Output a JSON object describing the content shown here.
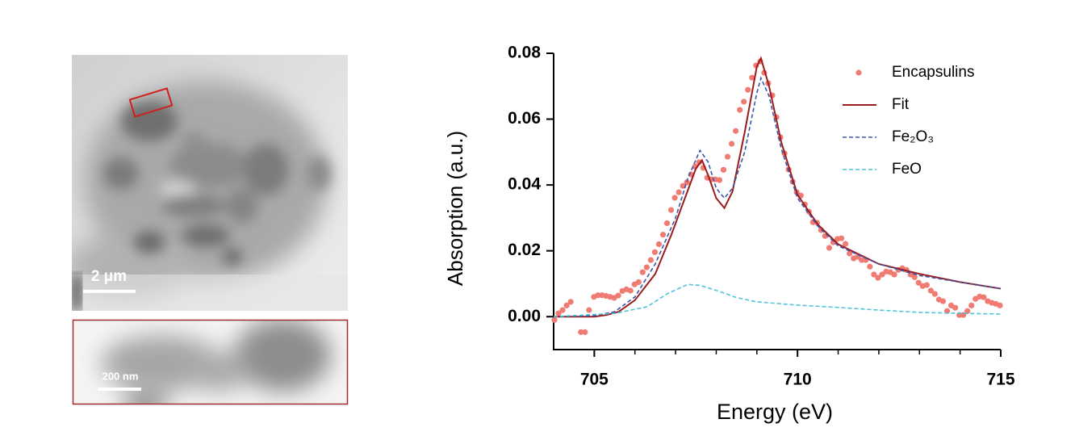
{
  "image_labels": {
    "main_scale": "2 μm",
    "inset_scale": "200 nm"
  },
  "chart_data": {
    "type": "line",
    "xlabel": "Energy (eV)",
    "ylabel": "Absorption (a.u.)",
    "xlim": [
      704,
      715
    ],
    "xticks": [
      705,
      710,
      715
    ],
    "xminorticks": [
      706,
      707,
      708,
      709,
      711,
      712,
      713,
      714
    ],
    "ylim": [
      -0.01,
      0.08
    ],
    "yticks": [
      {
        "value": 0,
        "label": "0.00"
      },
      0.02,
      0.04,
      0.06,
      0.08
    ],
    "legend": "upper right",
    "series": [
      {
        "name": "Encapsulins",
        "color": "#f07b72",
        "style": "markers",
        "x": [
          704.02,
          704.12,
          704.22,
          704.32,
          704.42,
          704.67,
          704.77,
          704.87,
          704.99,
          705.09,
          705.19,
          705.29,
          705.39,
          705.49,
          705.59,
          705.69,
          705.79,
          705.89,
          705.99,
          706.09,
          706.19,
          706.29,
          706.39,
          706.49,
          706.59,
          706.69,
          706.79,
          706.89,
          706.98,
          707.08,
          707.18,
          707.28,
          707.38,
          707.48,
          707.58,
          707.68,
          707.78,
          707.88,
          707.98,
          708.08,
          708.18,
          708.28,
          708.38,
          708.48,
          708.58,
          708.68,
          708.78,
          708.88,
          708.98,
          709.08,
          709.18,
          709.28,
          709.38,
          709.48,
          709.58,
          709.68,
          709.78,
          709.88,
          709.98,
          710.08,
          710.18,
          710.28,
          710.38,
          710.48,
          710.58,
          710.68,
          710.78,
          710.88,
          710.98,
          711.08,
          711.18,
          711.28,
          711.38,
          711.48,
          711.58,
          711.68,
          711.78,
          711.88,
          711.98,
          712.08,
          712.18,
          712.28,
          712.38,
          712.48,
          712.58,
          712.68,
          712.78,
          712.88,
          712.98,
          713.08,
          713.18,
          713.28,
          713.38,
          713.48,
          713.58,
          713.68,
          713.78,
          713.88,
          713.98,
          714.08,
          714.18,
          714.28,
          714.38,
          714.48,
          714.58,
          714.68,
          714.78,
          714.88,
          714.98
        ],
        "values": [
          -0.001,
          0.001,
          0.002,
          0.0034,
          0.0045,
          -0.0047,
          -0.0047,
          0.002,
          0.006,
          0.0065,
          0.0065,
          0.0063,
          0.006,
          0.0057,
          0.0064,
          0.0078,
          0.0083,
          0.0079,
          0.0098,
          0.0105,
          0.0135,
          0.015,
          0.0172,
          0.0196,
          0.022,
          0.0249,
          0.0284,
          0.0324,
          0.0361,
          0.0378,
          0.0397,
          0.0408,
          0.0432,
          0.0456,
          0.0469,
          0.0452,
          0.0422,
          0.0417,
          0.0417,
          0.0415,
          0.0446,
          0.0486,
          0.0525,
          0.0564,
          0.0628,
          0.0653,
          0.0689,
          0.0726,
          0.0763,
          0.0775,
          0.0741,
          0.0709,
          0.0672,
          0.0606,
          0.0545,
          0.0496,
          0.0447,
          0.041,
          0.0378,
          0.0368,
          0.0341,
          0.0319,
          0.0287,
          0.0285,
          0.0263,
          0.0245,
          0.0209,
          0.0226,
          0.0236,
          0.0238,
          0.0221,
          0.0192,
          0.0177,
          0.0182,
          0.0172,
          0.0172,
          0.0152,
          0.0128,
          0.0118,
          0.0128,
          0.0137,
          0.0135,
          0.0128,
          0.0142,
          0.0147,
          0.0142,
          0.0128,
          0.012,
          0.0103,
          0.0093,
          0.0096,
          0.0079,
          0.0069,
          0.0052,
          0.0047,
          0.0017,
          0.0034,
          0.0027,
          0.0005,
          0.0005,
          0.0017,
          0.0034,
          0.0054,
          0.0061,
          0.0059,
          0.0047,
          0.0042,
          0.0039,
          0.0034
        ]
      },
      {
        "name": "Fit",
        "color": "#9b1c1c",
        "style": "solid",
        "x": [
          704.0,
          705.0,
          705.3,
          705.6,
          706.0,
          706.5,
          706.9,
          707.2,
          707.5,
          707.65,
          707.8,
          708.0,
          708.2,
          708.4,
          708.7,
          709.0,
          709.1,
          709.3,
          709.6,
          710.0,
          710.5,
          711.0,
          711.5,
          712.0,
          713.0,
          714.0,
          715.0
        ],
        "values": [
          0,
          0,
          0.0005,
          0.0015,
          0.005,
          0.013,
          0.025,
          0.035,
          0.045,
          0.0475,
          0.043,
          0.036,
          0.033,
          0.038,
          0.056,
          0.076,
          0.0785,
          0.07,
          0.053,
          0.037,
          0.028,
          0.022,
          0.019,
          0.016,
          0.013,
          0.0105,
          0.0085
        ]
      },
      {
        "name": "Fe₂O₃",
        "color": "#3a56a8",
        "style": "dashed",
        "x": [
          704.0,
          705.0,
          705.5,
          706.0,
          706.5,
          707.0,
          707.3,
          707.6,
          707.8,
          708.0,
          708.2,
          708.4,
          708.7,
          709.0,
          709.1,
          709.3,
          709.6,
          710.0,
          710.5,
          711.0,
          712.0,
          713.0,
          714.0,
          715.0
        ],
        "values": [
          0,
          0.0003,
          0.0015,
          0.006,
          0.016,
          0.03,
          0.042,
          0.0505,
          0.047,
          0.039,
          0.036,
          0.039,
          0.05,
          0.068,
          0.0725,
          0.067,
          0.051,
          0.036,
          0.0275,
          0.0215,
          0.016,
          0.0125,
          0.0105,
          0.0085
        ]
      },
      {
        "name": "FeO",
        "color": "#4fc3d9",
        "style": "dashed",
        "x": [
          704.0,
          705.5,
          706.3,
          706.8,
          707.3,
          707.6,
          708.0,
          708.5,
          709.0,
          710.0,
          711.0,
          712.0,
          713.0,
          714.0,
          715.0
        ],
        "values": [
          0,
          0.001,
          0.003,
          0.007,
          0.0098,
          0.0095,
          0.008,
          0.0058,
          0.0045,
          0.0035,
          0.0028,
          0.002,
          0.0013,
          0.001,
          0.0008
        ]
      }
    ]
  }
}
